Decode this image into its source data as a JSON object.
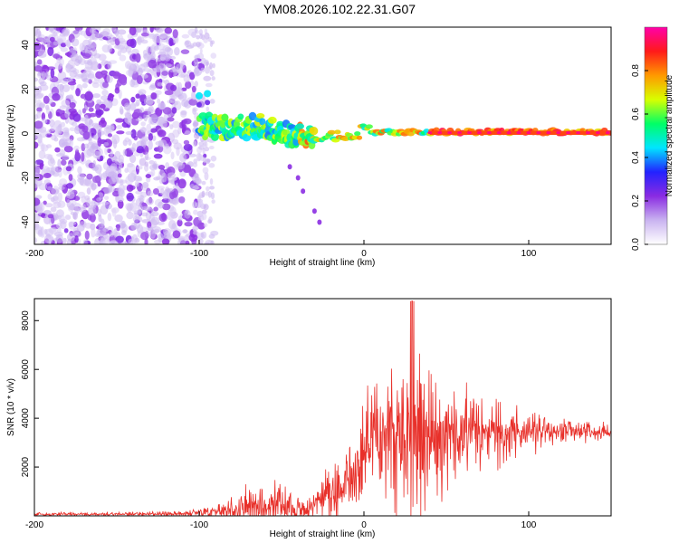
{
  "title": "YM08.2026.102.22.31.G07",
  "chart_data": [
    {
      "type": "heatmap",
      "name": "spectrogram",
      "xlabel": "Height of straight line (km)",
      "ylabel": "Frequency (Hz)",
      "xlim": [
        -200,
        150
      ],
      "ylim": [
        -50,
        48
      ],
      "xticks": [
        -200,
        -100,
        0,
        100
      ],
      "yticks": [
        -40,
        -20,
        0,
        20,
        40
      ],
      "colorbar": {
        "label": "Normalized spectral amplitude",
        "range": [
          0,
          1
        ],
        "ticks": [
          "0.0",
          "0.2",
          "0.4",
          "0.6",
          "0.8"
        ],
        "colors": [
          "#ffffff",
          "#c9b3f0",
          "#8a2be2",
          "#2222ff",
          "#00e5ff",
          "#00ff66",
          "#d8ff00",
          "#ff9900",
          "#ff1a1a",
          "#ff00aa"
        ]
      },
      "features": {
        "noise_region_x": [
          -200,
          -90
        ],
        "signal_track_x": [
          -100,
          150
        ],
        "signal_track_freq_hz": 0,
        "rising_branch": [
          [
            -100,
            17
          ],
          [
            -95,
            18
          ]
        ],
        "falling_branch": [
          [
            -45,
            -15
          ],
          [
            -40,
            -20
          ],
          [
            -37,
            -26
          ],
          [
            -30,
            -35
          ],
          [
            -27,
            -40
          ]
        ]
      }
    },
    {
      "type": "line",
      "name": "snr",
      "xlabel": "Height of straight line (km)",
      "ylabel": "SNR (10 * v/v)",
      "xlim": [
        -200,
        150
      ],
      "ylim": [
        0,
        8900
      ],
      "xticks": [
        -200,
        -100,
        0,
        100
      ],
      "yticks": [
        2000,
        4000,
        6000,
        8000
      ],
      "color": "#e8302a",
      "envelope": {
        "x": [
          -200,
          -150,
          -110,
          -95,
          -80,
          -65,
          -55,
          -45,
          -35,
          -25,
          -15,
          -5,
          5,
          15,
          25,
          30,
          35,
          45,
          55,
          70,
          85,
          100,
          115,
          130,
          150
        ],
        "base": [
          50,
          60,
          70,
          120,
          200,
          350,
          300,
          200,
          150,
          600,
          900,
          1400,
          3000,
          3200,
          2800,
          3000,
          2800,
          3000,
          3200,
          3200,
          3200,
          3300,
          3400,
          3400,
          3400
        ],
        "amp": [
          150,
          150,
          200,
          400,
          900,
          1800,
          2100,
          1600,
          700,
          2200,
          2600,
          3000,
          4400,
          5800,
          6400,
          6600,
          6000,
          4800,
          3600,
          2800,
          2400,
          1700,
          1200,
          800,
          600
        ]
      }
    }
  ]
}
